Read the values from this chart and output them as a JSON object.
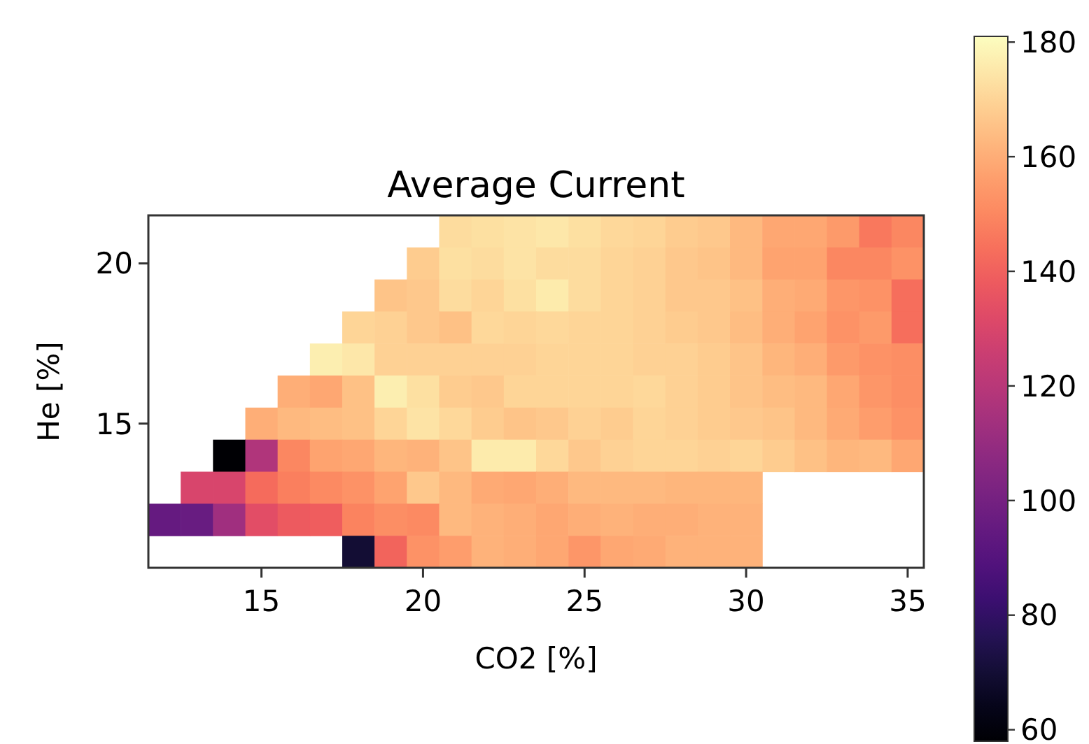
{
  "chart_data": {
    "type": "heatmap",
    "title": "Average Current",
    "xlabel": "CO2 [%]",
    "ylabel": "He [%]",
    "categories": [
      null,
      null,
      null,
      "15",
      null,
      null,
      null,
      null,
      "20",
      null,
      null,
      null,
      null,
      "25",
      null,
      null,
      null,
      null,
      "30",
      null,
      null,
      null,
      null,
      "35"
    ],
    "y_categories": [
      null,
      "20",
      null,
      null,
      null,
      null,
      "15",
      null,
      null,
      null,
      null
    ],
    "cells": [
      [
        null,
        null,
        null,
        null,
        null,
        null,
        null,
        null,
        null,
        172,
        173,
        174,
        175,
        173,
        171,
        170,
        168,
        167,
        163,
        158,
        158,
        155,
        146,
        150
      ],
      [
        null,
        null,
        null,
        null,
        null,
        null,
        null,
        null,
        168,
        173,
        172,
        174,
        172,
        172,
        170,
        169,
        167,
        166,
        163,
        157,
        157,
        150,
        150,
        153
      ],
      [
        null,
        null,
        null,
        null,
        null,
        null,
        null,
        166,
        167,
        172,
        170,
        173,
        176,
        172,
        170,
        169,
        167,
        167,
        165,
        160,
        159,
        154,
        153,
        144
      ],
      [
        null,
        null,
        null,
        null,
        null,
        null,
        170,
        169,
        167,
        165,
        171,
        170,
        171,
        170,
        170,
        169,
        168,
        167,
        164,
        160,
        157,
        153,
        155,
        144
      ],
      [
        null,
        null,
        null,
        null,
        null,
        177,
        175,
        169,
        169,
        169,
        169,
        169,
        170,
        170,
        170,
        169,
        169,
        168,
        166,
        162,
        160,
        155,
        153,
        152
      ],
      [
        null,
        null,
        null,
        null,
        160,
        158,
        165,
        177,
        173,
        168,
        167,
        170,
        170,
        170,
        170,
        171,
        169,
        168,
        166,
        164,
        163,
        158,
        154,
        152
      ],
      [
        null,
        null,
        null,
        160,
        163,
        164,
        165,
        170,
        174,
        171,
        168,
        166,
        167,
        169,
        168,
        170,
        169,
        168,
        167,
        166,
        163,
        159,
        156,
        153
      ],
      [
        null,
        null,
        58,
        118,
        150,
        157,
        158,
        162,
        161,
        166,
        176,
        176,
        171,
        167,
        169,
        170,
        170,
        169,
        170,
        168,
        165,
        162,
        163,
        158
      ],
      [
        null,
        130,
        130,
        143,
        148,
        151,
        153,
        157,
        167,
        163,
        159,
        158,
        160,
        163,
        163,
        163,
        162,
        162,
        162,
        null,
        null,
        null,
        null,
        null
      ],
      [
        95,
        96,
        113,
        133,
        138,
        139,
        149,
        152,
        151,
        163,
        161,
        160,
        158,
        160,
        161,
        160,
        160,
        161,
        161,
        null,
        null,
        null,
        null,
        null
      ],
      [
        null,
        null,
        null,
        null,
        null,
        null,
        70,
        141,
        153,
        156,
        161,
        160,
        158,
        154,
        158,
        159,
        161,
        161,
        161,
        null,
        null,
        null,
        null,
        null
      ]
    ],
    "clim": [
      58,
      181
    ],
    "cticks": [
      60,
      80,
      100,
      120,
      140,
      160,
      180
    ]
  }
}
